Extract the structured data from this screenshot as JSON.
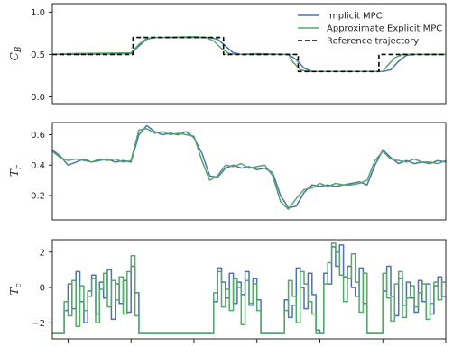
{
  "chart_data": {
    "type": "line",
    "legend": {
      "placement": "top-right",
      "entries": [
        "Implicit MPC",
        "Approximate Explicit MPC",
        "Reference trajectory"
      ]
    },
    "x_range": [
      0,
      100
    ],
    "x_tick_values": [
      4,
      20,
      36,
      52,
      68,
      84,
      100
    ],
    "colors": {
      "implicit": "#4C72B0",
      "explicit": "#55A868",
      "reference": "#000000"
    },
    "panels": [
      {
        "ylabel": "C",
        "ylabel_sub": "B",
        "ylim": [
          -0.08,
          1.1
        ],
        "yticks": [
          0.0,
          0.5,
          1.0
        ],
        "ytick_labels": [
          "0.0",
          "0.5",
          "1.0"
        ],
        "series": [
          {
            "name": "Implicit MPC",
            "key": "implicit",
            "style": "solid",
            "x": [
              0,
              4,
              20,
              22,
              24,
              26,
              28,
              36,
              40,
              42,
              44,
              46,
              48,
              52,
              60,
              62,
              64,
              66,
              68,
              70,
              72,
              80,
              84,
              86,
              88,
              90,
              92,
              96,
              100
            ],
            "y": [
              0.5,
              0.5,
              0.51,
              0.6,
              0.68,
              0.7,
              0.7,
              0.7,
              0.7,
              0.68,
              0.6,
              0.52,
              0.5,
              0.5,
              0.5,
              0.44,
              0.34,
              0.3,
              0.3,
              0.3,
              0.3,
              0.3,
              0.3,
              0.32,
              0.42,
              0.49,
              0.5,
              0.5,
              0.5
            ]
          },
          {
            "name": "Approximate Explicit MPC",
            "key": "explicit",
            "style": "solid",
            "x": [
              0,
              4,
              20,
              22,
              24,
              26,
              28,
              36,
              39,
              41,
              43,
              45,
              47,
              52,
              60,
              61,
              63,
              65,
              67,
              70,
              80,
              84,
              85,
              87,
              89,
              91,
              96,
              100
            ],
            "y": [
              0.5,
              0.51,
              0.52,
              0.62,
              0.69,
              0.7,
              0.7,
              0.71,
              0.7,
              0.66,
              0.57,
              0.51,
              0.5,
              0.51,
              0.5,
              0.42,
              0.32,
              0.3,
              0.3,
              0.3,
              0.3,
              0.3,
              0.36,
              0.46,
              0.5,
              0.5,
              0.5,
              0.5
            ]
          },
          {
            "name": "Reference trajectory",
            "key": "reference",
            "style": "dashed",
            "x": [
              0,
              20.5,
              20.5,
              43.5,
              43.5,
              62.5,
              62.5,
              83,
              83,
              100
            ],
            "y": [
              0.5,
              0.5,
              0.7,
              0.7,
              0.5,
              0.5,
              0.3,
              0.3,
              0.5,
              0.5
            ]
          }
        ]
      },
      {
        "ylabel": "T",
        "ylabel_sub": "r",
        "ylim": [
          0.04,
          0.68
        ],
        "yticks": [
          0.2,
          0.4,
          0.6
        ],
        "ytick_labels": [
          "0.2",
          "0.4",
          "0.6"
        ],
        "series": [
          {
            "name": "Implicit MPC",
            "key": "implicit",
            "style": "solid",
            "x": [
              0,
              2,
              4,
              6,
              8,
              10,
              12,
              14,
              16,
              18,
              20,
              22,
              24,
              26,
              28,
              30,
              32,
              34,
              36,
              38,
              40,
              42,
              44,
              46,
              48,
              50,
              52,
              54,
              56,
              58,
              60,
              62,
              64,
              66,
              68,
              70,
              72,
              74,
              76,
              78,
              80,
              82,
              84,
              86,
              88,
              90,
              92,
              94,
              96,
              98,
              100
            ],
            "y": [
              0.5,
              0.46,
              0.4,
              0.42,
              0.44,
              0.42,
              0.43,
              0.44,
              0.42,
              0.43,
              0.42,
              0.6,
              0.66,
              0.62,
              0.6,
              0.61,
              0.6,
              0.62,
              0.58,
              0.48,
              0.33,
              0.32,
              0.38,
              0.4,
              0.38,
              0.39,
              0.37,
              0.38,
              0.35,
              0.2,
              0.12,
              0.13,
              0.22,
              0.27,
              0.26,
              0.27,
              0.26,
              0.27,
              0.28,
              0.29,
              0.27,
              0.4,
              0.5,
              0.45,
              0.41,
              0.43,
              0.41,
              0.42,
              0.41,
              0.43,
              0.42
            ]
          },
          {
            "name": "Approximate Explicit MPC",
            "key": "explicit",
            "style": "solid",
            "x": [
              0,
              2,
              4,
              6,
              8,
              10,
              12,
              14,
              16,
              18,
              20,
              22,
              24,
              26,
              28,
              30,
              32,
              34,
              36,
              38,
              40,
              42,
              44,
              46,
              48,
              50,
              52,
              54,
              56,
              58,
              60,
              62,
              64,
              66,
              68,
              70,
              72,
              74,
              76,
              78,
              80,
              82,
              84,
              86,
              88,
              90,
              92,
              94,
              96,
              98,
              100
            ],
            "y": [
              0.49,
              0.45,
              0.43,
              0.44,
              0.43,
              0.42,
              0.44,
              0.43,
              0.44,
              0.42,
              0.43,
              0.63,
              0.64,
              0.61,
              0.62,
              0.6,
              0.61,
              0.6,
              0.59,
              0.43,
              0.3,
              0.33,
              0.4,
              0.39,
              0.41,
              0.38,
              0.39,
              0.4,
              0.33,
              0.16,
              0.11,
              0.18,
              0.24,
              0.25,
              0.28,
              0.26,
              0.28,
              0.27,
              0.27,
              0.28,
              0.3,
              0.43,
              0.49,
              0.44,
              0.43,
              0.42,
              0.44,
              0.42,
              0.42,
              0.41,
              0.43
            ]
          }
        ]
      },
      {
        "ylabel": "T",
        "ylabel_sub": "c",
        "ylim": [
          -2.9,
          2.7
        ],
        "yticks": [
          -2,
          0,
          2
        ],
        "ytick_labels": [
          "−2",
          "0",
          "2"
        ],
        "series": [
          {
            "name": "Implicit MPC",
            "key": "implicit",
            "style": "step",
            "x": [
              0,
              1.5,
              3,
              4,
              5,
              6,
              7,
              8,
              9,
              10,
              11,
              12,
              13,
              14,
              15,
              16,
              17,
              18,
              19,
              20,
              21,
              22,
              23,
              24,
              25,
              26,
              27,
              28,
              29,
              30,
              31,
              32,
              33,
              34,
              35,
              36,
              37,
              38,
              39,
              40,
              41,
              42,
              43,
              44,
              45,
              46,
              47,
              48,
              49,
              50,
              51,
              52,
              53,
              54,
              55,
              56,
              57,
              58,
              59,
              60,
              61,
              62,
              63,
              64,
              65,
              66,
              67,
              68,
              69,
              70,
              71,
              72,
              73,
              74,
              75,
              76,
              77,
              78,
              79,
              80,
              81,
              82,
              83,
              84,
              85,
              86,
              87,
              88,
              89,
              90,
              91,
              92,
              93,
              94,
              95,
              96,
              97,
              98,
              99
            ],
            "y": [
              -2.6,
              -2.6,
              -1.3,
              0.2,
              -1.2,
              0.9,
              -0.8,
              -2.0,
              -0.2,
              0.7,
              -1.5,
              0.3,
              -0.6,
              1.0,
              -1.8,
              0.2,
              -0.9,
              0.4,
              -1.4,
              1.2,
              -0.3,
              -2.6,
              -2.6,
              -2.6,
              -2.6,
              -2.6,
              -2.6,
              -2.6,
              -2.6,
              -2.6,
              -2.6,
              -2.6,
              -2.6,
              -2.6,
              -2.6,
              -2.6,
              -2.6,
              -2.6,
              -2.6,
              -2.6,
              -0.8,
              1.1,
              0.3,
              -0.6,
              0.8,
              -0.9,
              0.3,
              -0.4,
              0.9,
              -1.0,
              0.5,
              -0.7,
              -2.6,
              -2.6,
              -2.6,
              -2.6,
              -2.6,
              -2.6,
              -0.7,
              -1.7,
              -1.0,
              1.1,
              0.0,
              -1.2,
              0.8,
              -0.4,
              -2.4,
              -2.6,
              0.8,
              0.2,
              2.3,
              1.2,
              2.4,
              0.6,
              1.2,
              0.0,
              -0.5,
              1.1,
              -0.9,
              -2.6,
              -2.6,
              -2.6,
              -2.6,
              -0.2,
              1.2,
              -0.5,
              -1.6,
              0.5,
              -1.0,
              0.3,
              -0.6,
              -1.4,
              0.4,
              -0.8,
              0.2,
              -1.5,
              0.1,
              0.6,
              -0.5
            ]
          },
          {
            "name": "Approximate Explicit MPC",
            "key": "explicit",
            "style": "step",
            "x": [
              0,
              1.5,
              3,
              4,
              5,
              6,
              7,
              8,
              9,
              10,
              11,
              12,
              13,
              14,
              15,
              16,
              17,
              18,
              19,
              20,
              21,
              22,
              23,
              24,
              25,
              26,
              27,
              28,
              29,
              30,
              31,
              32,
              33,
              34,
              35,
              36,
              37,
              38,
              39,
              40,
              41,
              42,
              43,
              44,
              45,
              46,
              47,
              48,
              49,
              50,
              51,
              52,
              53,
              54,
              55,
              56,
              57,
              58,
              59,
              60,
              61,
              62,
              63,
              64,
              65,
              66,
              67,
              68,
              69,
              70,
              71,
              72,
              73,
              74,
              75,
              76,
              77,
              78,
              79,
              80,
              81,
              82,
              83,
              84,
              85,
              86,
              87,
              88,
              89,
              90,
              91,
              92,
              93,
              94,
              95,
              96,
              97,
              98,
              99
            ],
            "y": [
              -2.6,
              -2.6,
              -0.8,
              -1.6,
              0.4,
              -2.2,
              0.1,
              -1.3,
              -0.5,
              0.5,
              -2.0,
              -0.1,
              0.8,
              -1.1,
              0.4,
              -0.7,
              0.6,
              -1.5,
              0.9,
              1.8,
              -1.6,
              -2.6,
              -2.6,
              -2.6,
              -2.6,
              -2.6,
              -2.6,
              -2.6,
              -2.6,
              -2.6,
              -2.6,
              -2.6,
              -2.6,
              -2.6,
              -2.6,
              -2.6,
              -2.6,
              -2.6,
              -2.6,
              -2.6,
              -0.3,
              0.9,
              -1.1,
              -0.1,
              -1.3,
              0.5,
              0.0,
              -2.1,
              0.4,
              -0.9,
              0.2,
              -1.3,
              -2.6,
              -2.6,
              -2.6,
              -2.6,
              -2.6,
              -2.6,
              -1.3,
              0.4,
              -0.5,
              -2.0,
              0.9,
              0.2,
              -0.8,
              -1.5,
              -2.6,
              -2.6,
              0.2,
              1.4,
              2.5,
              2.0,
              0.7,
              -0.8,
              0.5,
              1.9,
              0.3,
              -1.4,
              0.8,
              -2.6,
              -2.6,
              -2.6,
              -2.6,
              0.8,
              -0.6,
              -1.9,
              0.2,
              0.9,
              -1.7,
              -0.6,
              0.1,
              -1.1,
              -0.3,
              0.2,
              -1.8,
              -0.9,
              0.3,
              -0.7,
              0.3
            ]
          }
        ]
      }
    ]
  }
}
